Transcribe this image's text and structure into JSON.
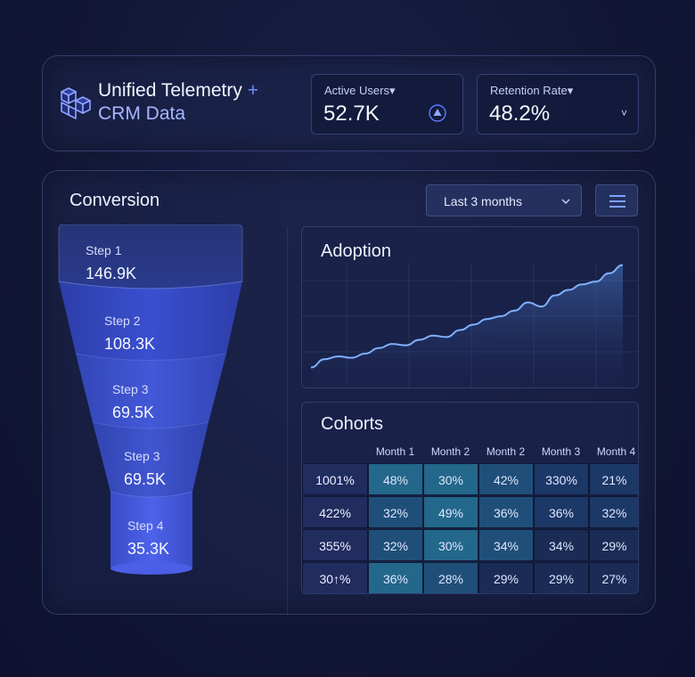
{
  "header": {
    "title_line1": "Unified Telemetry",
    "title_plus": "+",
    "title_line2": "CRM Data",
    "logo_icon": "cubes-icon",
    "kpis": [
      {
        "label": "Active Users▾",
        "value": "52.7K",
        "icon": "triangle-nodes-icon"
      },
      {
        "label": "Retention Rate▾",
        "value": "48.2%",
        "icon": "chevron-down-icon",
        "chevron": "˅"
      }
    ]
  },
  "conversion": {
    "title": "Conversion",
    "range_select": "Last 3 months",
    "menu_icon": "hamburger-menu-icon",
    "steps": [
      {
        "label": "Step 1",
        "value": "146.9K"
      },
      {
        "label": "Step 2",
        "value": "108.3K"
      },
      {
        "label": "Step 3",
        "value": "69.5K"
      },
      {
        "label": "Step 3",
        "value": "69.5K"
      },
      {
        "label": "Step 4",
        "value": "35.3K"
      }
    ]
  },
  "adoption": {
    "title": "Adoption",
    "chart_data": {
      "type": "area",
      "values": [
        8,
        14,
        16,
        15,
        18,
        22,
        25,
        24,
        28,
        31,
        30,
        35,
        39,
        43,
        45,
        49,
        55,
        52,
        60,
        64,
        68,
        70,
        76,
        82
      ]
    }
  },
  "cohorts": {
    "title": "Cohorts",
    "columns": [
      "Month 1",
      "Month 2",
      "Month 2",
      "Month 3",
      "Month 4"
    ],
    "rows": [
      {
        "label": "1001%",
        "cells": [
          "48%",
          "30%",
          "42%",
          "330%",
          "21%"
        ]
      },
      {
        "label": "422%",
        "cells": [
          "32%",
          "49%",
          "36%",
          "36%",
          "32%"
        ]
      },
      {
        "label": "355%",
        "cells": [
          "32%",
          "30%",
          "34%",
          "34%",
          "29%"
        ]
      },
      {
        "label": "30↑%",
        "cells": [
          "36%",
          "28%",
          "29%",
          "29%",
          "27%"
        ]
      }
    ],
    "cell_shades": [
      [
        "#23678a",
        "#23678a",
        "#1f4f78",
        "#1c3866",
        "#1c3866"
      ],
      [
        "#1f4f78",
        "#23678a",
        "#1f4f78",
        "#1c3866",
        "#1c3866"
      ],
      [
        "#1f4f78",
        "#23678a",
        "#1f4f78",
        "#1a2c55",
        "#1a2c55"
      ],
      [
        "#23678a",
        "#1f4f78",
        "#1a2c55",
        "#1a2c55",
        "#1a2c55"
      ]
    ]
  },
  "colors": {
    "accent": "#6f8cff",
    "line": "#7fb0ff",
    "funnel_top": "#2a3a96",
    "funnel_bottom": "#4256e0"
  }
}
